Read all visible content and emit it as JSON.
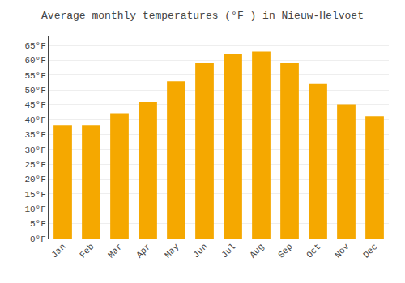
{
  "chart_data": {
    "type": "bar",
    "title": "Average monthly temperatures (°F ) in Nieuw-Helvoet",
    "categories": [
      "Jan",
      "Feb",
      "Mar",
      "Apr",
      "May",
      "Jun",
      "Jul",
      "Aug",
      "Sep",
      "Oct",
      "Nov",
      "Dec"
    ],
    "values": [
      38,
      38,
      42,
      46,
      53,
      59,
      62,
      63,
      59,
      52,
      45,
      41
    ],
    "color": "#F5A800",
    "ylim": [
      0,
      68
    ],
    "yticks": [
      {
        "value": 0,
        "label": "0°F"
      },
      {
        "value": 5,
        "label": "5°F"
      },
      {
        "value": 10,
        "label": "10°F"
      },
      {
        "value": 15,
        "label": "15°F"
      },
      {
        "value": 20,
        "label": "20°F"
      },
      {
        "value": 25,
        "label": "25°F"
      },
      {
        "value": 30,
        "label": "30°F"
      },
      {
        "value": 35,
        "label": "35°F"
      },
      {
        "value": 40,
        "label": "40°F"
      },
      {
        "value": 45,
        "label": "45°F"
      },
      {
        "value": 50,
        "label": "50°F"
      },
      {
        "value": 55,
        "label": "55°F"
      },
      {
        "value": 60,
        "label": "60°F"
      },
      {
        "value": 65,
        "label": "65°F"
      }
    ],
    "grid": true
  }
}
